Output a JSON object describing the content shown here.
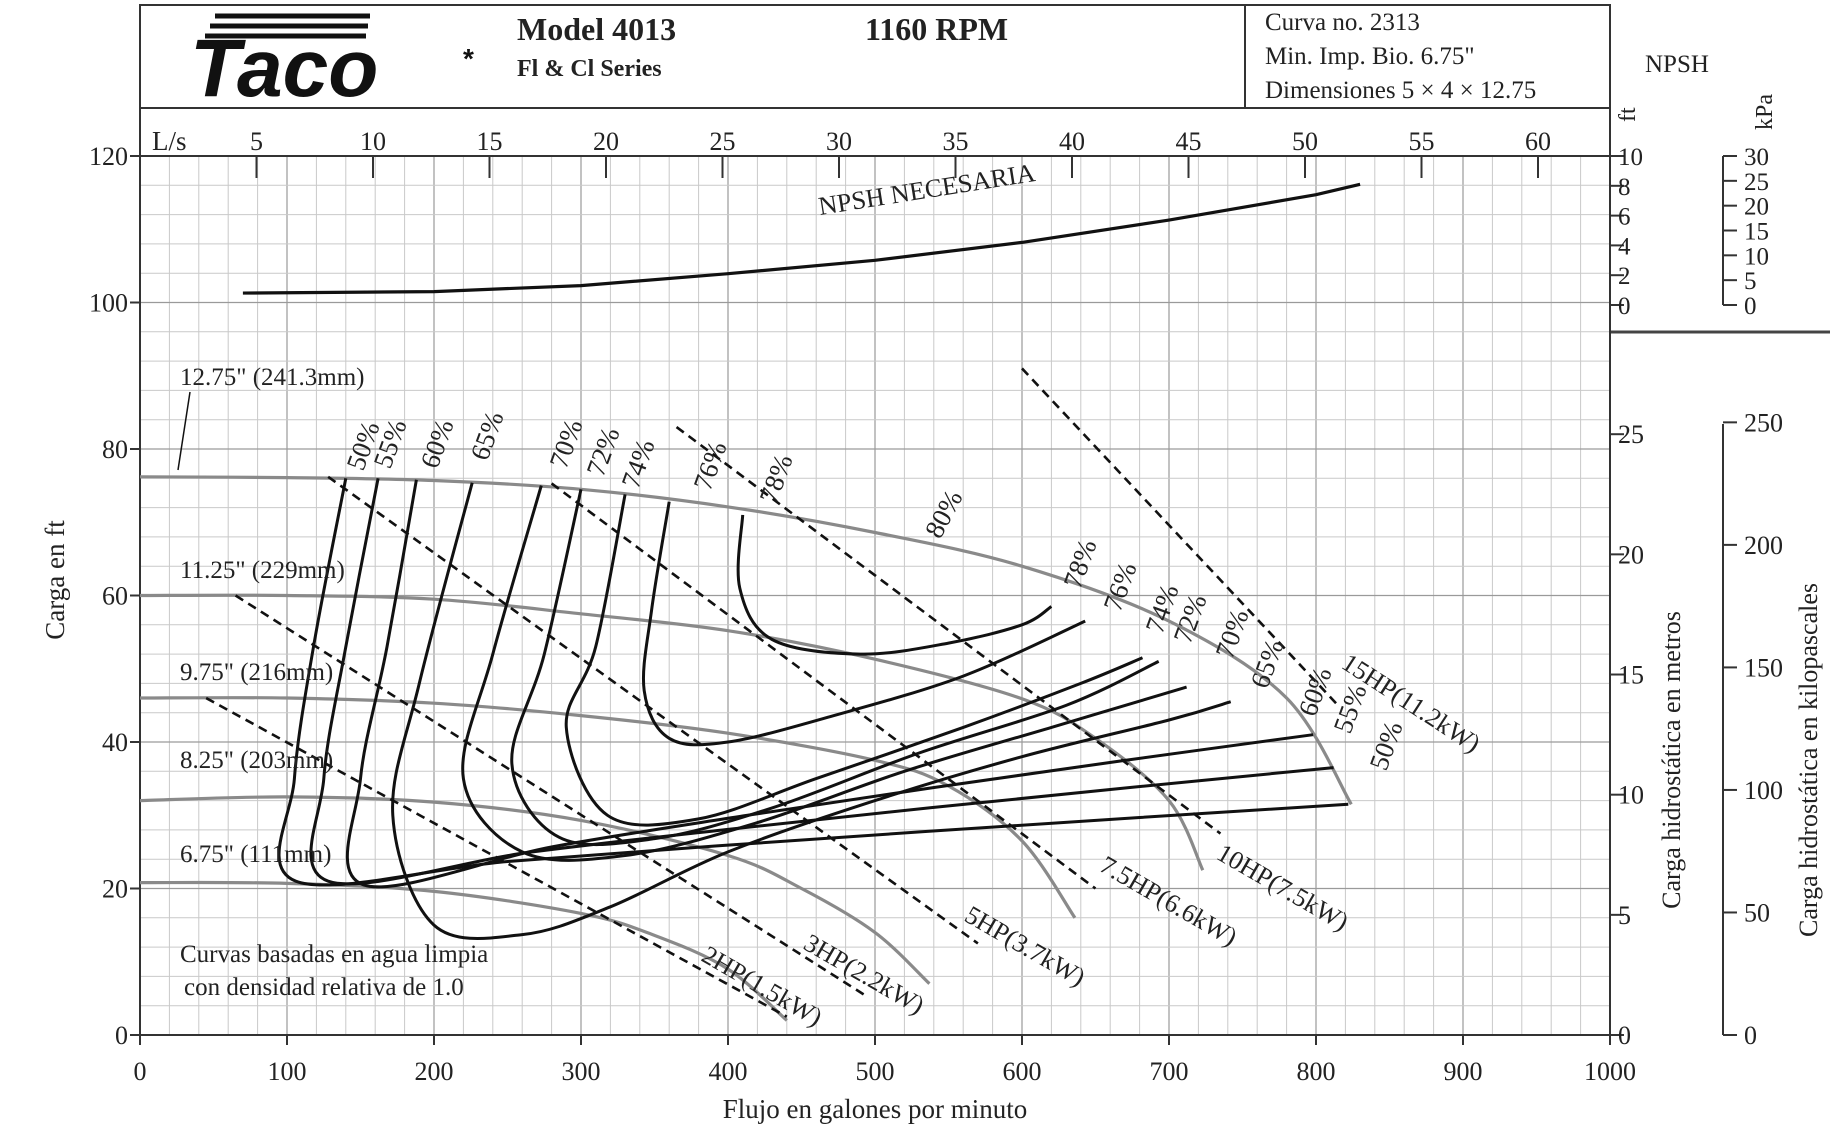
{
  "header": {
    "logo_text": "Taco",
    "logo_mark": "*",
    "model": "Model 4013",
    "series": "Fl & Cl Series",
    "rpm": "1160 RPM",
    "curve_no": "Curva no. 2313",
    "min_imp": "Min. Imp. Bio. 6.75\"",
    "dimensions": "Dimensiones 5 × 4 × 12.75"
  },
  "npsh_panel": {
    "title": "NPSH",
    "unit_ft": "ft",
    "unit_kpa": "kPa",
    "ft_ticks": [
      "10",
      "8",
      "6",
      "4",
      "2",
      "0"
    ],
    "kpa_ticks": [
      "30",
      "25",
      "20",
      "15",
      "10",
      "5",
      "0"
    ]
  },
  "chart_data": {
    "type": "line",
    "xlabel": "Flujo en galones por minuto",
    "ylabel": "Carga en ft",
    "xlim": [
      0,
      1000
    ],
    "ylim": [
      0,
      120
    ],
    "x_ticks": [
      "0",
      "100",
      "200",
      "300",
      "400",
      "500",
      "600",
      "700",
      "800",
      "900",
      "1000"
    ],
    "y_ticks": [
      "0",
      "20",
      "40",
      "60",
      "80",
      "100",
      "120"
    ],
    "top_axis_label": "L/s",
    "top_ticks": [
      "5",
      "10",
      "15",
      "20",
      "25",
      "30",
      "35",
      "40",
      "45",
      "50",
      "55",
      "60"
    ],
    "right_axis_m_label": "Carga hidrostática en metros",
    "right_axis_m_ticks": [
      "0",
      "5",
      "10",
      "15",
      "20",
      "25"
    ],
    "right_axis_kpa_label": "Carga hidrostática en kilopascales",
    "right_axis_kpa_ticks": [
      "0",
      "50",
      "100",
      "150",
      "200",
      "250"
    ],
    "grid": true,
    "note": [
      "Curvas basadas en agua limpia",
      "con densidad relativa de 1.0"
    ],
    "npsh_curve": {
      "label": "NPSH NECESARIA",
      "points": [
        [
          70,
          0.8
        ],
        [
          200,
          0.9
        ],
        [
          300,
          1.3
        ],
        [
          400,
          2.1
        ],
        [
          500,
          3.0
        ],
        [
          600,
          4.2
        ],
        [
          700,
          5.7
        ],
        [
          800,
          7.4
        ],
        [
          830,
          8.1
        ]
      ]
    },
    "impellers": [
      {
        "label": "12.75\" (241.3mm)",
        "points": [
          [
            0,
            76.2
          ],
          [
            100,
            76.1
          ],
          [
            200,
            75.7
          ],
          [
            300,
            74.5
          ],
          [
            400,
            72.1
          ],
          [
            500,
            68.6
          ],
          [
            600,
            64.0
          ],
          [
            700,
            56.5
          ],
          [
            780,
            46.0
          ],
          [
            824,
            31.5
          ]
        ]
      },
      {
        "label": "11.25\" (229mm)",
        "points": [
          [
            0,
            60.0
          ],
          [
            100,
            60.0
          ],
          [
            200,
            59.5
          ],
          [
            300,
            57.5
          ],
          [
            400,
            55.2
          ],
          [
            500,
            51.3
          ],
          [
            600,
            45.9
          ],
          [
            650,
            40.5
          ],
          [
            700,
            32.0
          ],
          [
            723,
            22.5
          ]
        ]
      },
      {
        "label": "9.75\" (216mm)",
        "points": [
          [
            0,
            46.0
          ],
          [
            100,
            46.0
          ],
          [
            200,
            45.3
          ],
          [
            300,
            43.6
          ],
          [
            400,
            41.2
          ],
          [
            500,
            37.5
          ],
          [
            550,
            34.0
          ],
          [
            600,
            26.5
          ],
          [
            636,
            16.0
          ]
        ]
      },
      {
        "label": "8.25\" (203mm)",
        "points": [
          [
            0,
            32.0
          ],
          [
            100,
            32.5
          ],
          [
            200,
            31.8
          ],
          [
            300,
            29.3
          ],
          [
            400,
            24.5
          ],
          [
            450,
            20.0
          ],
          [
            500,
            14.0
          ],
          [
            537,
            7.0
          ]
        ]
      },
      {
        "label": "6.75\" (111mm)",
        "points": [
          [
            0,
            20.8
          ],
          [
            100,
            20.7
          ],
          [
            200,
            19.6
          ],
          [
            300,
            16.6
          ],
          [
            350,
            13.6
          ],
          [
            400,
            9.0
          ],
          [
            440,
            2.0
          ]
        ]
      }
    ],
    "hp_lines": [
      {
        "label": "2HP(1.5kW)",
        "points": [
          [
            45,
            46.0
          ],
          [
            440,
            2.5
          ]
        ]
      },
      {
        "label": "3HP(2.2kW)",
        "points": [
          [
            65,
            60.0
          ],
          [
            495,
            5.2
          ]
        ]
      },
      {
        "label": "5HP(3.7kW)",
        "points": [
          [
            128,
            76.2
          ],
          [
            570,
            12.5
          ]
        ]
      },
      {
        "label": "7.5HP(6.6kW)",
        "points": [
          [
            280,
            75.3
          ],
          [
            650,
            20.0
          ]
        ]
      },
      {
        "label": "10HP(7.5kW)",
        "points": [
          [
            365,
            83.0
          ],
          [
            735,
            27.5
          ]
        ]
      },
      {
        "label": "15HP(11.2kW)",
        "points": [
          [
            600,
            91.0
          ],
          [
            815,
            45.0
          ]
        ]
      }
    ],
    "efficiency_curves": [
      {
        "label": "50%",
        "points": [
          [
            140,
            76.0
          ],
          [
            118,
            53.0
          ],
          [
            105,
            35.0
          ],
          [
            106,
            21.0
          ]
        ],
        "end": [
          822,
          31.5
        ],
        "right_label": "50%"
      },
      {
        "label": "55%",
        "points": [
          [
            162,
            76.0
          ],
          [
            140,
            53.0
          ],
          [
            125,
            35.0
          ],
          [
            128,
            21.0
          ]
        ],
        "end": [
          812,
          36.5
        ],
        "right_label": "55%"
      },
      {
        "label": "60%",
        "points": [
          [
            188,
            75.8
          ],
          [
            168,
            53.0
          ],
          [
            150,
            35.0
          ],
          [
            152,
            20.5
          ]
        ],
        "end": [
          798,
          41.0
        ],
        "right_label": "60%"
      },
      {
        "label": "65%",
        "points": [
          [
            226,
            75.4
          ],
          [
            190,
            48.0
          ],
          [
            172,
            30.0
          ],
          [
            200,
            15.0
          ],
          [
            260,
            13.7
          ],
          [
            320,
            17.5
          ],
          [
            400,
            25.0
          ],
          [
            500,
            32.0
          ],
          [
            600,
            38.0
          ],
          [
            700,
            43.0
          ],
          [
            742,
            45.5
          ]
        ],
        "right_label": "65%"
      },
      {
        "label": "70%",
        "points": [
          [
            273,
            75.0
          ],
          [
            240,
            52.0
          ],
          [
            220,
            35.0
          ],
          [
            260,
            25.0
          ],
          [
            330,
            24.5
          ],
          [
            420,
            29.0
          ],
          [
            520,
            36.0
          ],
          [
            620,
            42.0
          ],
          [
            712,
            47.5
          ]
        ],
        "right_label": "70%"
      },
      {
        "label": "72%",
        "points": [
          [
            300,
            74.5
          ],
          [
            275,
            52.0
          ],
          [
            253,
            37.0
          ],
          [
            285,
            27.0
          ],
          [
            350,
            26.8
          ],
          [
            430,
            31.0
          ],
          [
            530,
            38.5
          ],
          [
            630,
            45.0
          ],
          [
            693,
            51.0
          ]
        ],
        "right_label": "72%"
      },
      {
        "label": "74%",
        "points": [
          [
            330,
            73.8
          ],
          [
            310,
            53.0
          ],
          [
            290,
            42.0
          ],
          [
            318,
            30.0
          ],
          [
            380,
            29.5
          ],
          [
            460,
            35.0
          ],
          [
            560,
            42.0
          ],
          [
            640,
            48.0
          ],
          [
            682,
            51.5
          ]
        ],
        "right_label": "74%"
      },
      {
        "label": "76%",
        "points": [
          [
            360,
            72.8
          ],
          [
            348,
            58.0
          ],
          [
            343,
            47.0
          ],
          [
            360,
            40.5
          ],
          [
            400,
            40.0
          ],
          [
            470,
            43.5
          ],
          [
            560,
            49.0
          ],
          [
            643,
            56.5
          ]
        ],
        "right_label": "76%"
      },
      {
        "label": "78%",
        "points": [
          [
            410,
            71.0
          ],
          [
            408,
            61.0
          ],
          [
            430,
            54.0
          ],
          [
            490,
            52.0
          ],
          [
            550,
            53.5
          ],
          [
            600,
            56.0
          ],
          [
            620,
            58.5
          ]
        ],
        "right_label": "78%"
      }
    ],
    "efficiency_peak_label": "80%"
  }
}
